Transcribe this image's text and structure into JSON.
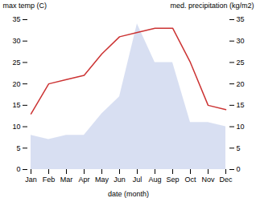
{
  "chart_data": {
    "type": "line",
    "categories": [
      "Jan",
      "Feb",
      "Mar",
      "Apr",
      "May",
      "Jun",
      "Jul",
      "Aug",
      "Sep",
      "Oct",
      "Nov",
      "Dec"
    ],
    "xlabel": "date (month)",
    "ylabel": "max temp (C)",
    "y2label": "med. precipitation (kg/m2)",
    "series": [
      {
        "type": "area",
        "axis": "y2",
        "color": "#b8c4e8",
        "values": [
          8,
          7,
          8,
          8,
          13,
          17,
          34,
          25,
          25,
          11,
          11,
          10
        ]
      },
      {
        "type": "line",
        "color": "#cc3333",
        "values": [
          13,
          20,
          21,
          22,
          27,
          31,
          32,
          33,
          33,
          25,
          15,
          14
        ]
      }
    ],
    "ylim": [
      0,
      35
    ],
    "yticks": [
      0,
      5,
      10,
      15,
      20,
      25,
      30,
      35
    ],
    "y2lim": [
      0,
      35
    ],
    "y2ticks": [
      0,
      5,
      10,
      15,
      20,
      25,
      30,
      35
    ],
    "grid": false
  }
}
